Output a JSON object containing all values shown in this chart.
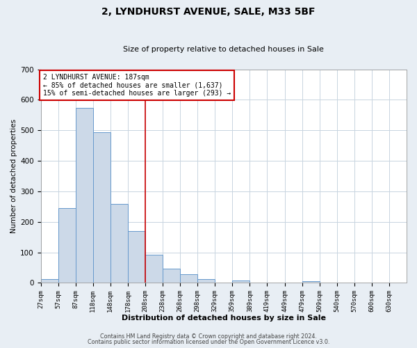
{
  "title_line1": "2, LYNDHURST AVENUE, SALE, M33 5BF",
  "title_line2": "Size of property relative to detached houses in Sale",
  "xlabel": "Distribution of detached houses by size in Sale",
  "ylabel": "Number of detached properties",
  "bar_labels": [
    "27sqm",
    "57sqm",
    "87sqm",
    "118sqm",
    "148sqm",
    "178sqm",
    "208sqm",
    "238sqm",
    "268sqm",
    "298sqm",
    "329sqm",
    "359sqm",
    "389sqm",
    "419sqm",
    "449sqm",
    "479sqm",
    "509sqm",
    "540sqm",
    "570sqm",
    "600sqm",
    "630sqm"
  ],
  "bar_heights": [
    12,
    245,
    573,
    493,
    258,
    170,
    91,
    47,
    28,
    13,
    0,
    8,
    0,
    0,
    0,
    6,
    0,
    0,
    0,
    0,
    0
  ],
  "bar_color": "#ccd9e8",
  "bar_edge_color": "#6699cc",
  "vline_x_index": 6,
  "vline_color": "#cc0000",
  "annotation_text": "2 LYNDHURST AVENUE: 187sqm\n← 85% of detached houses are smaller (1,637)\n15% of semi-detached houses are larger (293) →",
  "annotation_box_color": "#cc0000",
  "ylim": [
    0,
    700
  ],
  "yticks": [
    0,
    100,
    200,
    300,
    400,
    500,
    600,
    700
  ],
  "footer_line1": "Contains HM Land Registry data © Crown copyright and database right 2024.",
  "footer_line2": "Contains public sector information licensed under the Open Government Licence v3.0.",
  "fig_bg_color": "#e8eef4",
  "plot_bg_color": "#ffffff",
  "grid_color": "#c8d4e0"
}
